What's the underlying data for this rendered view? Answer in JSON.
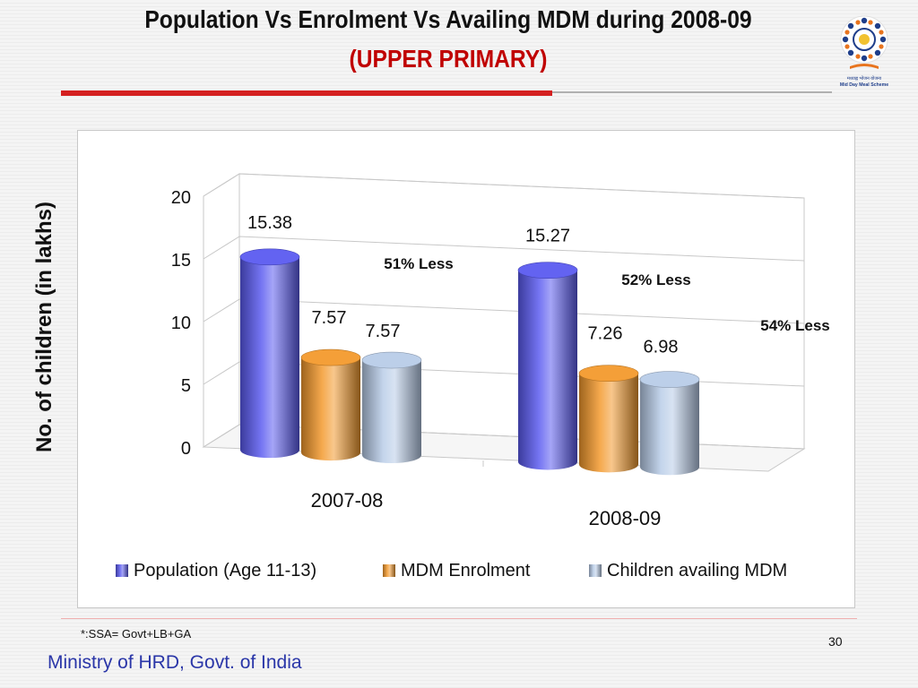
{
  "header": {
    "title": "Population Vs Enrolment Vs Availing MDM during  2008-09",
    "subtitle": "(UPPER PRIMARY)"
  },
  "logo": {
    "icon": "mid-day-meal-logo",
    "caption_line1": "मध्याह्न भोजन योजना",
    "caption_line2": "Mid Day Meal Scheme"
  },
  "y_axis_title": "No. of children (in lakhs)",
  "footnote": "*:SSA= Govt+LB+GA",
  "page_number": "30",
  "footer": "Ministry of HRD, Govt. of India",
  "chart_data": {
    "type": "bar",
    "categories": [
      "2007-08",
      "2008-09"
    ],
    "series": [
      {
        "name": "Population (Age 11-13)",
        "values": [
          15.38,
          15.27
        ],
        "labels": [
          "15.38",
          "15.27"
        ],
        "color": "#5b5bf0"
      },
      {
        "name": "MDM Enrolment",
        "values": [
          7.57,
          7.26
        ],
        "labels": [
          "7.57",
          "7.26"
        ],
        "color": "#f39a2e"
      },
      {
        "name": "Children availing MDM",
        "values": [
          7.57,
          6.98
        ],
        "labels": [
          "7.57",
          "6.98"
        ],
        "color": "#b8cce8"
      }
    ],
    "y_ticks": [
      "0",
      "5",
      "10",
      "15",
      "20"
    ],
    "ylim": [
      0,
      20
    ],
    "annotations": [
      "51% Less",
      "52% Less",
      "54% Less"
    ],
    "legend_position": "bottom",
    "grid": true,
    "style": "3d-cylinder"
  }
}
